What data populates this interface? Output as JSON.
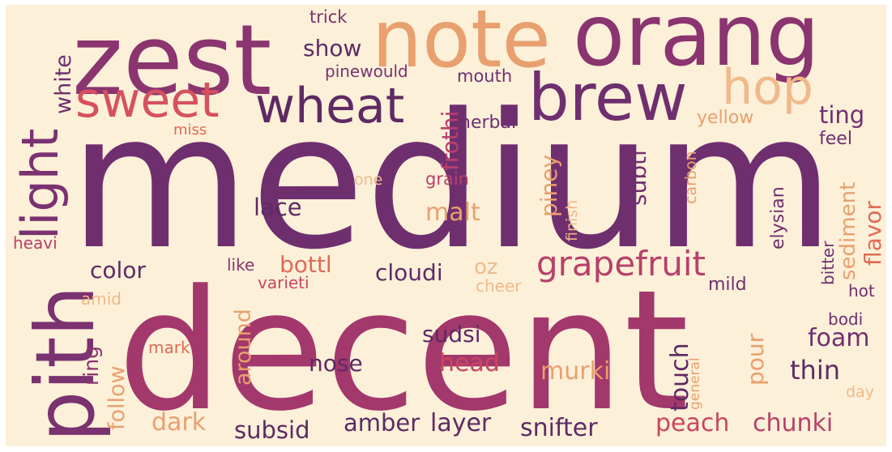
{
  "palette": {
    "background": "#fdf0d9",
    "deep": "#6f2f6f",
    "magenta": "#b03a6a",
    "rose": "#c8465f",
    "coral": "#e06a55",
    "peach": "#e8a06e",
    "light_peach": "#f0b98a"
  },
  "words": [
    {
      "text": "medium",
      "color": "#6f2f6f"
    },
    {
      "text": "decent",
      "color": "#a3386c"
    },
    {
      "text": "orang",
      "color": "#8a3470"
    },
    {
      "text": "zest",
      "color": "#8a3470"
    },
    {
      "text": "note",
      "color": "#e8a06e"
    },
    {
      "text": "brew",
      "color": "#6f2f6f"
    },
    {
      "text": "pith",
      "color": "#7a3270"
    },
    {
      "text": "light",
      "color": "#7a3270"
    },
    {
      "text": "sweet",
      "color": "#d6515e"
    },
    {
      "text": "wheat",
      "color": "#5e2a63"
    },
    {
      "text": "hop",
      "color": "#f0b98a"
    },
    {
      "text": "grapefruit",
      "color": "#b8406a"
    },
    {
      "text": "white",
      "color": "#6f2f6f"
    },
    {
      "text": "trick",
      "color": "#7a3270"
    },
    {
      "text": "show",
      "color": "#5e2a63"
    },
    {
      "text": "pinewould",
      "color": "#7a3270"
    },
    {
      "text": "mouth",
      "color": "#6f2f6f"
    },
    {
      "text": "frothi",
      "color": "#b8406a"
    },
    {
      "text": "herbal",
      "color": "#6f2f6f"
    },
    {
      "text": "miss",
      "color": "#e06a55"
    },
    {
      "text": "yellow",
      "color": "#e8a06e"
    },
    {
      "text": "ting",
      "color": "#6f2f6f"
    },
    {
      "text": "feel",
      "color": "#6f2f6f"
    },
    {
      "text": "one",
      "color": "#f0b98a"
    },
    {
      "text": "grain",
      "color": "#b8406a"
    },
    {
      "text": "piney",
      "color": "#e8a06e"
    },
    {
      "text": "finish",
      "color": "#f0b98a"
    },
    {
      "text": "subtl",
      "color": "#6f2f6f"
    },
    {
      "text": "carbon",
      "color": "#e8a06e"
    },
    {
      "text": "elysian",
      "color": "#6f2f6f"
    },
    {
      "text": "sediment",
      "color": "#e8a06e"
    },
    {
      "text": "flavor",
      "color": "#e06a55"
    },
    {
      "text": "lace",
      "color": "#5e2a63"
    },
    {
      "text": "malt",
      "color": "#e8a06e"
    },
    {
      "text": "heavi",
      "color": "#b8406a"
    },
    {
      "text": "color",
      "color": "#5e2a63"
    },
    {
      "text": "like",
      "color": "#8a3470"
    },
    {
      "text": "bottl",
      "color": "#e06a55"
    },
    {
      "text": "cloudi",
      "color": "#5e2a63"
    },
    {
      "text": "oz",
      "color": "#f0b98a"
    },
    {
      "text": "varieti",
      "color": "#c8465f"
    },
    {
      "text": "cheer",
      "color": "#f0b98a"
    },
    {
      "text": "mild",
      "color": "#6f2f6f"
    },
    {
      "text": "bitter",
      "color": "#6f2f6f"
    },
    {
      "text": "hot",
      "color": "#6f2f6f"
    },
    {
      "text": "amid",
      "color": "#f0b98a"
    },
    {
      "text": "ring",
      "color": "#8a3470"
    },
    {
      "text": "follow",
      "color": "#e8a06e"
    },
    {
      "text": "around",
      "color": "#e8a06e"
    },
    {
      "text": "sudsi",
      "color": "#5e2a63"
    },
    {
      "text": "nose",
      "color": "#5e2a63"
    },
    {
      "text": "head",
      "color": "#c8465f"
    },
    {
      "text": "murki",
      "color": "#e8a06e"
    },
    {
      "text": "touch",
      "color": "#5e2a63"
    },
    {
      "text": "pour",
      "color": "#e8a06e"
    },
    {
      "text": "foam",
      "color": "#6f2f6f"
    },
    {
      "text": "thin",
      "color": "#5e2a63"
    },
    {
      "text": "bodi",
      "color": "#6f2f6f"
    },
    {
      "text": "day",
      "color": "#f0b98a"
    },
    {
      "text": "general",
      "color": "#e8a06e"
    },
    {
      "text": "mark",
      "color": "#e06a55"
    },
    {
      "text": "dark",
      "color": "#e8a06e"
    },
    {
      "text": "subsid",
      "color": "#5e2a63"
    },
    {
      "text": "amber",
      "color": "#5e2a63"
    },
    {
      "text": "layer",
      "color": "#5e2a63"
    },
    {
      "text": "snifter",
      "color": "#5e2a63"
    },
    {
      "text": "peach",
      "color": "#c8465f"
    },
    {
      "text": "chunki",
      "color": "#b8406a"
    }
  ]
}
